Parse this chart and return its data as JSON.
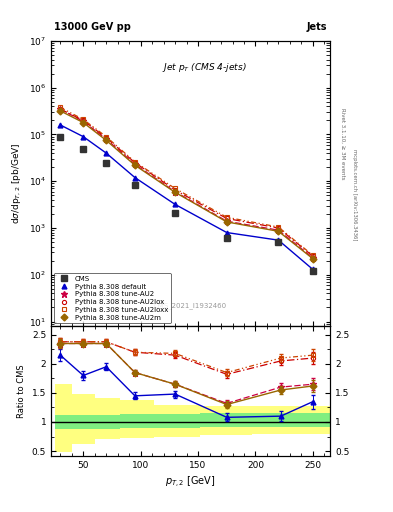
{
  "title_top": "13000 GeV pp",
  "title_right": "Jets",
  "plot_title": "Jet $p_T$ (CMS 4-jets)",
  "xlabel": "$p_{T,2}$ [GeV]",
  "ylabel_main": "dσ/dp$_{T,2}$ [pb/GeV]",
  "ylabel_ratio": "Ratio to CMS",
  "watermark": "CMS_2021_I1932460",
  "right_label_1": "Rivet 3.1.10, ≥ 3M events",
  "right_label_2": "mcplots.cern.ch [arXiv:1306.3436]",
  "cms_x": [
    30,
    50,
    70,
    95,
    130,
    175,
    220,
    250
  ],
  "cms_y": [
    90000.0,
    50000.0,
    25000.0,
    8500,
    2100,
    600,
    500,
    120
  ],
  "pythia_x": [
    30,
    50,
    70,
    95,
    130,
    175,
    220,
    250
  ],
  "default_y": [
    160000.0,
    90000.0,
    40000.0,
    12000.0,
    3200,
    800,
    550,
    130
  ],
  "au2_y": [
    350000.0,
    190000.0,
    80000.0,
    23000.0,
    6000,
    1400,
    900,
    230
  ],
  "au2lox_y": [
    350000.0,
    200000.0,
    85000.0,
    25000.0,
    6500,
    1600,
    1000,
    250
  ],
  "au2loxx_y": [
    380000.0,
    210000.0,
    90000.0,
    26000.0,
    7000,
    1700,
    1050,
    260
  ],
  "au2m_y": [
    320000.0,
    180000.0,
    75000.0,
    22000.0,
    5800,
    1350,
    850,
    220
  ],
  "ratio_x": [
    30,
    50,
    70,
    95,
    130,
    175,
    222,
    250
  ],
  "ratio_default": [
    2.15,
    1.8,
    1.95,
    1.45,
    1.48,
    1.08,
    1.1,
    1.35
  ],
  "ratio_au2": [
    2.35,
    2.35,
    2.35,
    1.85,
    1.65,
    1.32,
    1.6,
    1.65
  ],
  "ratio_au2lox": [
    2.38,
    2.38,
    2.38,
    2.2,
    2.15,
    1.82,
    2.05,
    2.1
  ],
  "ratio_au2loxx": [
    2.38,
    2.38,
    2.38,
    2.2,
    2.18,
    1.85,
    2.1,
    2.15
  ],
  "ratio_au2m": [
    2.35,
    2.35,
    2.35,
    1.85,
    1.65,
    1.3,
    1.55,
    1.62
  ],
  "band_edges": [
    25,
    40,
    60,
    82,
    112,
    152,
    197,
    237,
    265
  ],
  "green_lo": [
    0.88,
    0.88,
    0.88,
    0.9,
    0.9,
    0.92,
    0.92,
    0.92
  ],
  "green_hi": [
    1.12,
    1.12,
    1.12,
    1.14,
    1.14,
    1.15,
    1.15,
    1.15
  ],
  "yellow_lo": [
    0.48,
    0.62,
    0.7,
    0.72,
    0.75,
    0.78,
    0.8,
    0.8
  ],
  "yellow_hi": [
    1.65,
    1.48,
    1.42,
    1.38,
    1.3,
    1.28,
    1.28,
    1.28
  ],
  "color_cms": "#333333",
  "color_default": "#0000cc",
  "color_au2": "#cc0044",
  "color_au2lox": "#cc0000",
  "color_au2loxx": "#cc4400",
  "color_au2m": "#996600",
  "color_green": "#80ee80",
  "color_yellow": "#ffff80",
  "ylim_main": [
    8,
    10000000.0
  ],
  "ylim_ratio": [
    0.42,
    2.65
  ],
  "xlim": [
    22,
    265
  ]
}
